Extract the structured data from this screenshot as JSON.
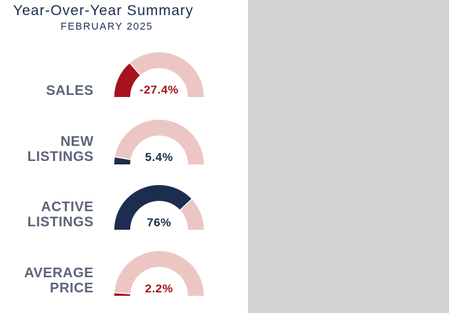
{
  "header": {
    "title": "Year-Over-Year Summary",
    "subtitle": "FEBRUARY 2025"
  },
  "colors": {
    "track": "#ecc6c2",
    "negative": "#a6121f",
    "positive": "#1c2d4f",
    "label": "#5c6479",
    "background_right": "#d4d3d6"
  },
  "chart_data": [
    {
      "type": "gauge",
      "label_lines": [
        "SALES"
      ],
      "value": -27.4,
      "display": "-27.4%",
      "fill_fraction": 0.274,
      "color": "negative"
    },
    {
      "type": "gauge",
      "label_lines": [
        "NEW",
        "LISTINGS"
      ],
      "value": 5.4,
      "display": "5.4%",
      "fill_fraction": 0.054,
      "color": "positive"
    },
    {
      "type": "gauge",
      "label_lines": [
        "ACTIVE",
        "LISTINGS"
      ],
      "value": 76,
      "display": "76%",
      "fill_fraction": 0.76,
      "color": "positive"
    },
    {
      "type": "gauge",
      "label_lines": [
        "AVERAGE",
        "PRICE"
      ],
      "value": 2.2,
      "display": "2.2%",
      "fill_fraction": 0.022,
      "color": "negative"
    }
  ]
}
